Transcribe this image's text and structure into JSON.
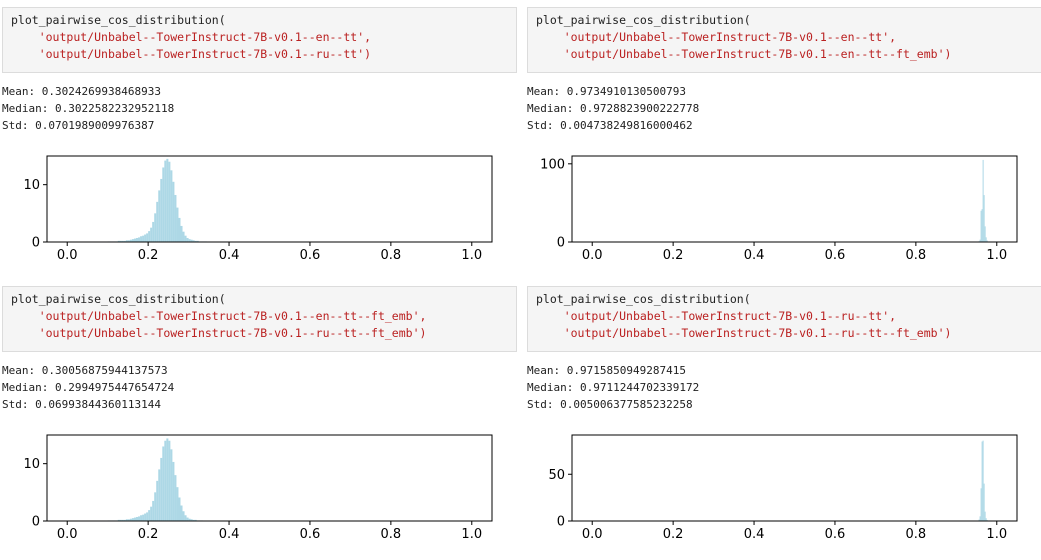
{
  "cells": [
    {
      "code": {
        "func": "plot_pairwise_cos_distribution(",
        "arg1": "'output/Unbabel--TowerInstruct-7B-v0.1--en--tt',",
        "arg2": "'output/Unbabel--TowerInstruct-7B-v0.1--ru--tt')"
      },
      "stats": {
        "mean": "Mean: 0.3024269938468933",
        "median": "Median: 0.3022582232952118",
        "std": "Std: 0.0701989009976387"
      }
    },
    {
      "code": {
        "func": "plot_pairwise_cos_distribution(",
        "arg1": "'output/Unbabel--TowerInstruct-7B-v0.1--en--tt',",
        "arg2": "'output/Unbabel--TowerInstruct-7B-v0.1--en--tt--ft_emb')"
      },
      "stats": {
        "mean": "Mean: 0.9734910130500793",
        "median": "Median: 0.9728823900222778",
        "std": "Std: 0.004738249816000462"
      }
    },
    {
      "code": {
        "func": "plot_pairwise_cos_distribution(",
        "arg1": "'output/Unbabel--TowerInstruct-7B-v0.1--en--tt--ft_emb',",
        "arg2": "'output/Unbabel--TowerInstruct-7B-v0.1--ru--tt--ft_emb')"
      },
      "stats": {
        "mean": "Mean: 0.30056875944137573",
        "median": "Median: 0.2994975447654724",
        "std": "Std: 0.06993844360113144"
      }
    },
    {
      "code": {
        "func": "plot_pairwise_cos_distribution(",
        "arg1": "'output/Unbabel--TowerInstruct-7B-v0.1--ru--tt',",
        "arg2": "'output/Unbabel--TowerInstruct-7B-v0.1--ru--tt--ft_emb')"
      },
      "stats": {
        "mean": "Mean: 0.9715850949287415",
        "median": "Median: 0.9711244702339172",
        "std": "Std: 0.005006377585232258"
      }
    }
  ],
  "chart_data": [
    {
      "type": "histogram",
      "xlim": [
        -0.05,
        1.05
      ],
      "ylim": [
        0,
        15
      ],
      "xticks": [
        0.0,
        0.2,
        0.4,
        0.6,
        0.8,
        1.0
      ],
      "xtick_labels": [
        "0.0",
        "0.2",
        "0.4",
        "0.6",
        "0.8",
        "1.0"
      ],
      "yticks": [
        0,
        10
      ],
      "ytick_labels": [
        "0",
        "10"
      ],
      "bar_color": "#add8e6",
      "bins": {
        "start": 0.0,
        "width": 0.005,
        "values": [
          0,
          0,
          0,
          0,
          0,
          0,
          0,
          0,
          0,
          0,
          0,
          0,
          0,
          0,
          0,
          0,
          0,
          0,
          0,
          0,
          0.1,
          0.1,
          0.1,
          0.1,
          0.1,
          0.2,
          0.2,
          0.2,
          0.2,
          0.3,
          0.3,
          0.4,
          0.5,
          0.6,
          0.7,
          0.8,
          1.0,
          1.1,
          1.3,
          1.5,
          1.9,
          2.5,
          3.5,
          5.0,
          7.0,
          9.0,
          11.0,
          13.0,
          14.2,
          14.5,
          14.0,
          12.5,
          10.5,
          8.2,
          6.0,
          4.2,
          2.8,
          1.8,
          1.1,
          0.7,
          0.5,
          0.4,
          0.3,
          0.2,
          0.2,
          0.1,
          0.1,
          0.1,
          0.1,
          0.05,
          0.05,
          0.05,
          0.05,
          0.05,
          0.05,
          0.05,
          0.02,
          0.02,
          0.02,
          0.02,
          0.02,
          0.02,
          0.02,
          0.02,
          0.02,
          0.01,
          0.01,
          0.01,
          0.01,
          0.01,
          0.01,
          0.01,
          0.01,
          0.01,
          0.01,
          0.01,
          0.01,
          0.01,
          0.01,
          0.01,
          0.01,
          0.01,
          0.01,
          0.01,
          0.01,
          0.01,
          0.01,
          0.01,
          0.01,
          0.01,
          0.01,
          0.01,
          0.01,
          0.01,
          0.01,
          0.01,
          0.01,
          0.01,
          0.01,
          0.01,
          0.01,
          0.01,
          0.01,
          0.01,
          0.01,
          0.01,
          0.01,
          0.01,
          0.01,
          0.01,
          0.01,
          0.01,
          0.01,
          0.01,
          0.01,
          0.01,
          0.01,
          0.01,
          0.01,
          0.01,
          0.01,
          0.01,
          0.01,
          0.01,
          0.01,
          0.01,
          0.01,
          0.01,
          0.01,
          0.01,
          0.01,
          0.01,
          0.01,
          0.01,
          0.01,
          0.01,
          0.01,
          0.01,
          0.01,
          0.01,
          0.01,
          0.01,
          0.01,
          0.01,
          0.01,
          0.01,
          0.01,
          0.01,
          0.01,
          0.01,
          0.01,
          0.01,
          0.01,
          0.01,
          0.01,
          0.01,
          0.01,
          0.01,
          0.01,
          0.01,
          0.01,
          0.01,
          0.01,
          0.01,
          0.01,
          0.01,
          0.01,
          0.01,
          0.01,
          0.01,
          0.01,
          0.01,
          0.01,
          0.01,
          0.01,
          0.01,
          0.01,
          0.01,
          0.01,
          0.01,
          0.01,
          0.01,
          0.01,
          0.01,
          0.01,
          0.01,
          0.01
        ]
      }
    },
    {
      "type": "histogram",
      "xlim": [
        -0.05,
        1.05
      ],
      "ylim": [
        0,
        110
      ],
      "xticks": [
        0.0,
        0.2,
        0.4,
        0.6,
        0.8,
        1.0
      ],
      "xtick_labels": [
        "0.0",
        "0.2",
        "0.4",
        "0.6",
        "0.8",
        "1.0"
      ],
      "yticks": [
        0,
        100
      ],
      "ytick_labels": [
        "0",
        "100"
      ],
      "bar_color": "#add8e6",
      "bins": {
        "start": 0.95,
        "width": 0.0025,
        "values": [
          0.2,
          0.4,
          1.0,
          3.0,
          40.0,
          42.0,
          105.0,
          60.0,
          20.0,
          6.0,
          2.0,
          0.5,
          0.2
        ]
      }
    },
    {
      "type": "histogram",
      "xlim": [
        -0.05,
        1.05
      ],
      "ylim": [
        0,
        15
      ],
      "xticks": [
        0.0,
        0.2,
        0.4,
        0.6,
        0.8,
        1.0
      ],
      "xtick_labels": [
        "0.0",
        "0.2",
        "0.4",
        "0.6",
        "0.8",
        "1.0"
      ],
      "yticks": [
        0,
        10
      ],
      "ytick_labels": [
        "0",
        "10"
      ],
      "bar_color": "#add8e6",
      "bins": {
        "start": 0.0,
        "width": 0.005,
        "values": [
          0,
          0,
          0,
          0,
          0,
          0,
          0,
          0,
          0,
          0,
          0,
          0,
          0,
          0,
          0,
          0,
          0,
          0,
          0,
          0,
          0.1,
          0.1,
          0.1,
          0.1,
          0.1,
          0.2,
          0.2,
          0.2,
          0.2,
          0.3,
          0.3,
          0.4,
          0.5,
          0.6,
          0.7,
          0.8,
          1.0,
          1.1,
          1.3,
          1.5,
          1.9,
          2.5,
          3.5,
          5.0,
          7.0,
          9.0,
          11.0,
          13.0,
          14.0,
          14.4,
          14.0,
          12.5,
          10.3,
          8.0,
          5.9,
          4.1,
          2.7,
          1.7,
          1.0,
          0.6,
          0.4,
          0.3,
          0.2,
          0.2,
          0.1,
          0.1,
          0.1,
          0.05,
          0.05,
          0.05,
          0.05,
          0.05,
          0.05,
          0.05,
          0.02,
          0.02,
          0.02,
          0.02,
          0.02,
          0.02,
          0.02,
          0.02,
          0.02,
          0.01,
          0.01,
          0.01,
          0.01,
          0.01,
          0.01,
          0.01,
          0.01,
          0.01,
          0.01,
          0.01,
          0.01,
          0.01,
          0.01,
          0.01,
          0.01,
          0.01,
          0.01,
          0.01,
          0.01,
          0.01,
          0.01,
          0.01,
          0.01,
          0.01,
          0.01,
          0.01,
          0.01,
          0.01,
          0.01,
          0.01,
          0.01,
          0.01,
          0.01,
          0.01,
          0.01,
          0.01,
          0.01,
          0.01,
          0.01,
          0.01,
          0.01,
          0.01,
          0.01,
          0.01,
          0.01,
          0.01,
          0.01,
          0.01,
          0.01,
          0.01,
          0.01,
          0.01,
          0.01,
          0.01,
          0.01,
          0.01,
          0.01,
          0.01,
          0.01,
          0.01,
          0.01,
          0.01,
          0.01,
          0.01,
          0.01,
          0.01,
          0.01,
          0.01,
          0.01,
          0.01,
          0.01,
          0.01,
          0.01,
          0.01,
          0.01,
          0.01,
          0.01,
          0.01,
          0.01,
          0.01,
          0.01,
          0.01,
          0.01,
          0.01,
          0.01,
          0.01,
          0.01,
          0.01,
          0.01,
          0.01,
          0.01,
          0.01,
          0.01,
          0.01,
          0.01,
          0.01,
          0.01,
          0.01,
          0.01,
          0.01,
          0.01,
          0.01,
          0.01,
          0.01,
          0.01,
          0.01,
          0.01,
          0.01,
          0.01,
          0.01,
          0.01,
          0.01,
          0.01,
          0.01,
          0.01,
          0.01,
          0.01,
          0.01,
          0.01,
          0.01,
          0.01,
          0.01,
          0.01,
          0.01,
          0.01
        ]
      }
    },
    {
      "type": "histogram",
      "xlim": [
        -0.05,
        1.05
      ],
      "ylim": [
        0,
        92
      ],
      "xticks": [
        0.0,
        0.2,
        0.4,
        0.6,
        0.8,
        1.0
      ],
      "xtick_labels": [
        "0.0",
        "0.2",
        "0.4",
        "0.6",
        "0.8",
        "1.0"
      ],
      "yticks": [
        0,
        50
      ],
      "ytick_labels": [
        "0",
        "50"
      ],
      "bar_color": "#add8e6",
      "bins": {
        "start": 0.95,
        "width": 0.0025,
        "values": [
          0.2,
          0.5,
          1.5,
          5.0,
          35.0,
          85.0,
          86.0,
          40.0,
          10.0,
          3.0,
          1.0,
          0.3,
          0.1
        ]
      }
    }
  ]
}
